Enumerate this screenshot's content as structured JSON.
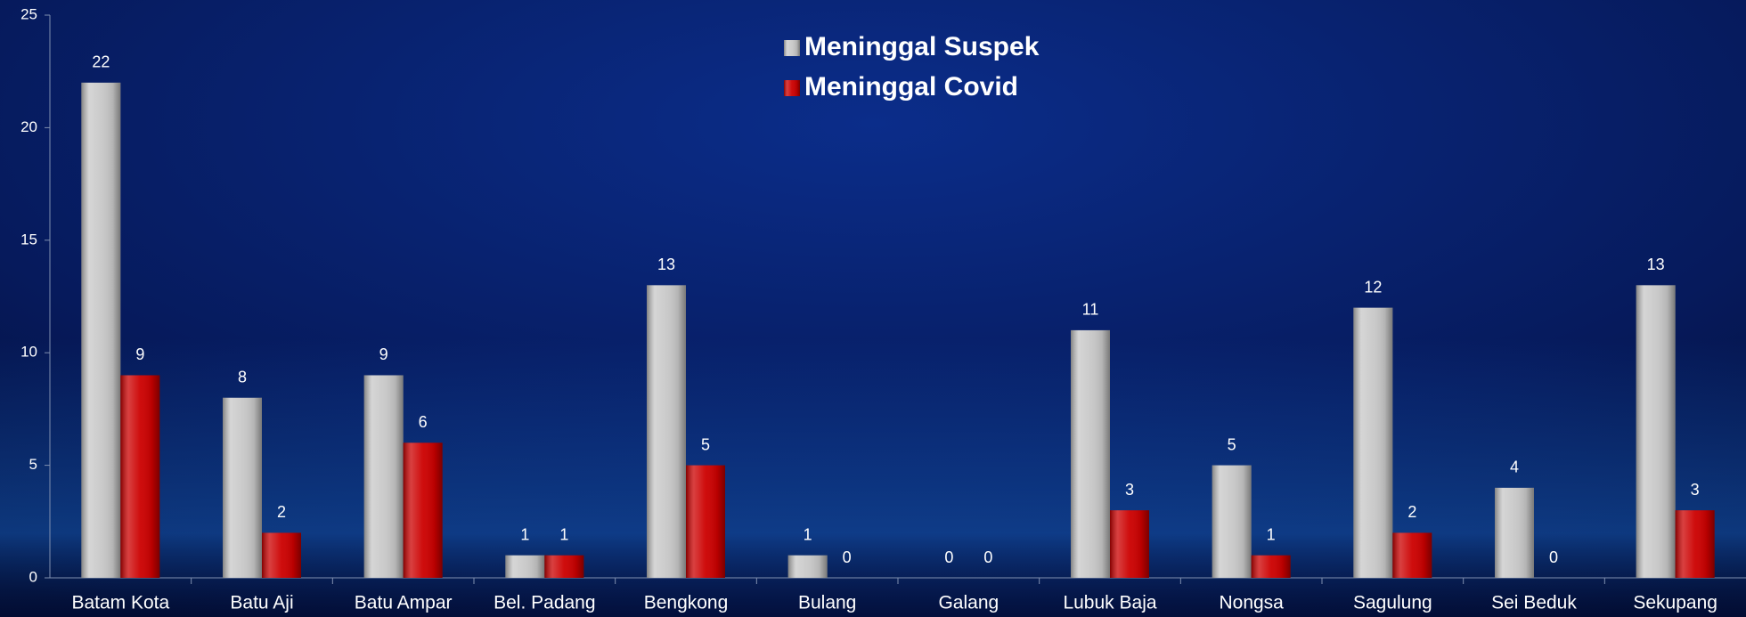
{
  "chart_data": {
    "type": "bar",
    "categories": [
      "Batam Kota",
      "Batu Aji",
      "Batu Ampar",
      "Bel. Padang",
      "Bengkong",
      "Bulang",
      "Galang",
      "Lubuk Baja",
      "Nongsa",
      "Sagulung",
      "Sei Beduk",
      "Sekupang"
    ],
    "series": [
      {
        "name": "Meninggal Suspek",
        "color": "#c8c8c8",
        "values": [
          22,
          8,
          9,
          1,
          13,
          1,
          0,
          11,
          5,
          12,
          4,
          13
        ]
      },
      {
        "name": "Meninggal Covid",
        "color": "#cc0000",
        "values": [
          9,
          2,
          6,
          1,
          5,
          0,
          0,
          3,
          1,
          2,
          0,
          3
        ]
      }
    ],
    "ylim": [
      0,
      25
    ],
    "yticks": [
      0,
      5,
      10,
      15,
      20,
      25
    ],
    "legend": "top"
  }
}
